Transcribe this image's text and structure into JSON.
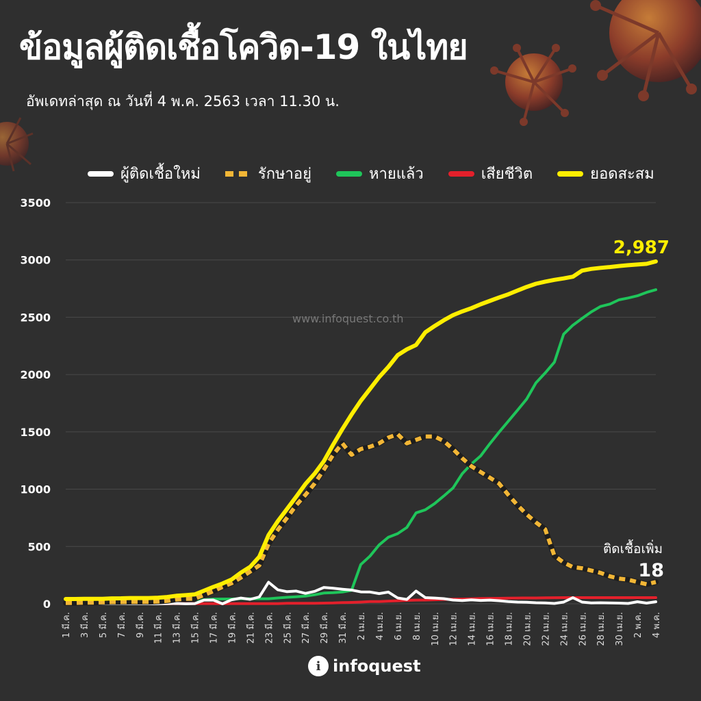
{
  "header": {
    "title": "ข้อมูลผู้ติดเชื้อโควิด-19 ในไทย",
    "subtitle": "อัพเดทล่าสุด ณ วันที่ 4 พ.ค. 2563 เวลา 11.30 น."
  },
  "watermark": "www.infoquest.co.th",
  "logo": {
    "text": "infoquest",
    "icon": "info-i-icon"
  },
  "colors": {
    "background": "#2f2f2f",
    "new_cases": "#ffffff",
    "active": "#f2b636",
    "recovered": "#1fc55a",
    "deaths": "#e3202b",
    "cumulative": "#ffee00"
  },
  "chart_data": {
    "type": "line",
    "title": "ข้อมูลผู้ติดเชื้อโควิด-19 ในไทย",
    "xlabel": "",
    "ylabel": "",
    "ylim": [
      0,
      3500
    ],
    "yticks": [
      0,
      500,
      1000,
      1500,
      2000,
      2500,
      3000,
      3500
    ],
    "grid": true,
    "legend_position": "top",
    "x_tick_labels": [
      "1 มี.ค.",
      "3 มี.ค.",
      "5 มี.ค.",
      "7 มี.ค.",
      "9 มี.ค.",
      "11 มี.ค.",
      "13 มี.ค.",
      "15 มี.ค.",
      "17 มี.ค.",
      "19 มี.ค.",
      "21 มี.ค.",
      "23 มี.ค.",
      "25 มี.ค.",
      "27 มี.ค.",
      "29 มี.ค.",
      "31 มี.ค.",
      "2 เม.ย.",
      "4 เม.ย.",
      "6 เม.ย.",
      "8 เม.ย.",
      "10 เม.ย.",
      "12 เม.ย.",
      "14 เม.ย.",
      "16 เม.ย.",
      "18 เม.ย.",
      "20 เม.ย.",
      "22 เม.ย.",
      "24 เม.ย.",
      "26 เม.ย.",
      "28 เม.ย.",
      "30 เม.ย.",
      "2 พ.ค.",
      "4 พ.ค."
    ],
    "series": [
      {
        "name": "ผู้ติดเชื้อใหม่",
        "style": "solid",
        "values": [
          0,
          0,
          0,
          0,
          0,
          0,
          0,
          0,
          0,
          0,
          0,
          1,
          3,
          0,
          2,
          32,
          33,
          0,
          35,
          50,
          39,
          60,
          188,
          122,
          106,
          111,
          91,
          109,
          143,
          136,
          127,
          120,
          104,
          103,
          89,
          102,
          51,
          38,
          111,
          54,
          50,
          45,
          33,
          28,
          34,
          29,
          32,
          27,
          19,
          15,
          13,
          9,
          8,
          3,
          15,
          53,
          15,
          7,
          9,
          7,
          6,
          3,
          18,
          6,
          18
        ]
      },
      {
        "name": "รักษาอยู่",
        "style": "dashed",
        "values": [
          8,
          8,
          10,
          11,
          13,
          15,
          15,
          17,
          17,
          17,
          20,
          25,
          38,
          43,
          45,
          77,
          110,
          147,
          180,
          228,
          281,
          335,
          523,
          645,
          750,
          860,
          950,
          1050,
          1170,
          1300,
          1400,
          1300,
          1350,
          1370,
          1400,
          1450,
          1480,
          1400,
          1430,
          1460,
          1460,
          1420,
          1350,
          1270,
          1200,
          1150,
          1100,
          1050,
          950,
          860,
          780,
          710,
          650,
          420,
          360,
          320,
          310,
          290,
          270,
          240,
          220,
          210,
          190,
          170,
          190
        ]
      },
      {
        "name": "หายแล้ว",
        "style": "solid",
        "values": [
          31,
          31,
          31,
          31,
          31,
          31,
          31,
          31,
          31,
          31,
          31,
          33,
          35,
          35,
          35,
          35,
          41,
          42,
          42,
          44,
          44,
          44,
          44,
          51,
          57,
          61,
          67,
          79,
          94,
          97,
          103,
          117,
          342,
          416,
          514,
          581,
          612,
          666,
          793,
          820,
          874,
          940,
          1010,
          1135,
          1220,
          1290,
          1397,
          1497,
          1593,
          1689,
          1787,
          1928,
          2014,
          2108,
          2352,
          2430,
          2490,
          2547,
          2594,
          2614,
          2652,
          2668,
          2687,
          2717,
          2740
        ]
      },
      {
        "name": "เสียชีวิต",
        "style": "solid",
        "values": [
          1,
          1,
          1,
          1,
          1,
          1,
          1,
          1,
          1,
          1,
          1,
          1,
          1,
          1,
          1,
          1,
          1,
          1,
          1,
          1,
          1,
          1,
          1,
          2,
          4,
          4,
          5,
          5,
          6,
          7,
          10,
          12,
          15,
          19,
          20,
          23,
          26,
          30,
          32,
          33,
          35,
          38,
          40,
          41,
          43,
          46,
          47,
          48,
          49,
          50,
          51,
          51,
          52,
          53,
          54,
          54,
          54,
          54,
          54,
          54,
          54,
          54,
          54,
          54,
          54
        ]
      },
      {
        "name": "ยอดสะสม",
        "style": "solid",
        "values": [
          42,
          42,
          43,
          43,
          43,
          47,
          48,
          50,
          50,
          50,
          53,
          59,
          70,
          75,
          82,
          114,
          147,
          177,
          212,
          272,
          322,
          411,
          599,
          721,
          827,
          934,
          1045,
          1136,
          1245,
          1388,
          1524,
          1651,
          1771,
          1875,
          1978,
          2067,
          2169,
          2220,
          2258,
          2369,
          2423,
          2473,
          2518,
          2551,
          2579,
          2613,
          2643,
          2672,
          2700,
          2733,
          2765,
          2792,
          2811,
          2826,
          2839,
          2854,
          2907,
          2922,
          2931,
          2938,
          2947,
          2954,
          2960,
          2966,
          2987
        ]
      }
    ],
    "annotations": [
      {
        "series": "ยอดสะสม",
        "text": "2,987"
      },
      {
        "series": "ผู้ติดเชื้อใหม่",
        "label": "ติดเชื้อเพิ่ม",
        "text": "18"
      }
    ]
  }
}
